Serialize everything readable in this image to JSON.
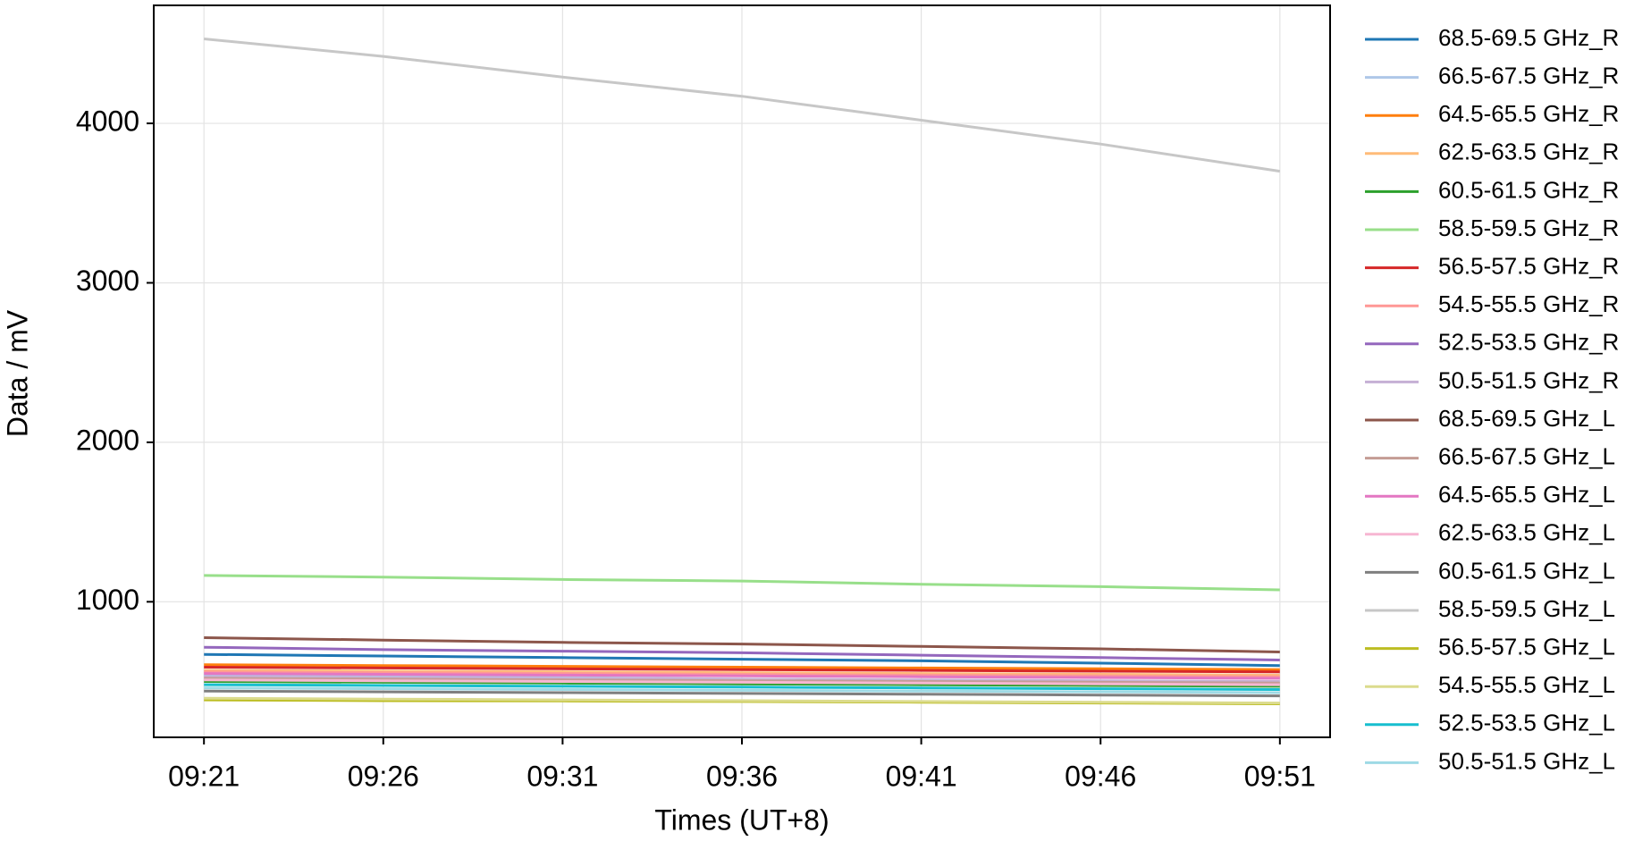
{
  "chart_data": {
    "type": "line",
    "x_label": "Times (UT+8)",
    "y_label": "Data / mV",
    "categories": [
      "09:21",
      "09:26",
      "09:31",
      "09:36",
      "09:41",
      "09:46",
      "09:51"
    ],
    "ylim": [
      150,
      4740
    ],
    "yticks": [
      1000,
      2000,
      3000,
      4000
    ],
    "grid": true,
    "legend": "outside-right",
    "series": [
      {
        "name": "68.5-69.5 GHz_R",
        "color": "#1f77b4",
        "values": [
          670,
          660,
          650,
          640,
          630,
          615,
          600
        ]
      },
      {
        "name": "66.5-67.5 GHz_R",
        "color": "#aec7e8",
        "values": [
          540,
          535,
          525,
          515,
          505,
          495,
          485
        ]
      },
      {
        "name": "64.5-65.5 GHz_R",
        "color": "#ff7f0e",
        "values": [
          605,
          600,
          595,
          590,
          585,
          580,
          575
        ]
      },
      {
        "name": "62.5-63.5 GHz_R",
        "color": "#ffbb78",
        "values": [
          570,
          565,
          560,
          555,
          550,
          545,
          540
        ]
      },
      {
        "name": "60.5-61.5 GHz_R",
        "color": "#2ca02c",
        "values": [
          500,
          495,
          490,
          485,
          480,
          475,
          470
        ]
      },
      {
        "name": "58.5-59.5 GHz_R",
        "color": "#98df8a",
        "values": [
          1165,
          1155,
          1140,
          1130,
          1110,
          1095,
          1075
        ]
      },
      {
        "name": "56.5-57.5 GHz_R",
        "color": "#d62728",
        "values": [
          590,
          585,
          580,
          575,
          570,
          565,
          560
        ]
      },
      {
        "name": "54.5-55.5 GHz_R",
        "color": "#ff9896",
        "values": [
          560,
          555,
          550,
          545,
          540,
          535,
          530
        ]
      },
      {
        "name": "52.5-53.5 GHz_R",
        "color": "#9467bd",
        "values": [
          715,
          700,
          690,
          680,
          665,
          650,
          635
        ]
      },
      {
        "name": "50.5-51.5 GHz_R",
        "color": "#c5b0d5",
        "values": [
          530,
          525,
          520,
          515,
          510,
          505,
          500
        ]
      },
      {
        "name": "68.5-69.5 GHz_L",
        "color": "#8c564b",
        "values": [
          775,
          760,
          745,
          735,
          720,
          705,
          685
        ]
      },
      {
        "name": "66.5-67.5 GHz_L",
        "color": "#c49c94",
        "values": [
          520,
          515,
          510,
          505,
          500,
          495,
          490
        ]
      },
      {
        "name": "64.5-65.5 GHz_L",
        "color": "#e377c2",
        "values": [
          550,
          545,
          540,
          535,
          530,
          525,
          520
        ]
      },
      {
        "name": "62.5-63.5 GHz_L",
        "color": "#f7b6d2",
        "values": [
          510,
          505,
          500,
          495,
          490,
          485,
          480
        ]
      },
      {
        "name": "60.5-61.5 GHz_L",
        "color": "#7f7f7f",
        "values": [
          440,
          435,
          430,
          425,
          420,
          415,
          410
        ]
      },
      {
        "name": "58.5-59.5 GHz_L",
        "color": "#c7c7c7",
        "values": [
          4530,
          4420,
          4290,
          4170,
          4020,
          3870,
          3700
        ]
      },
      {
        "name": "56.5-57.5 GHz_L",
        "color": "#bcbd22",
        "values": [
          385,
          380,
          378,
          375,
          370,
          365,
          360
        ]
      },
      {
        "name": "54.5-55.5 GHz_L",
        "color": "#dbdb8d",
        "values": [
          395,
          390,
          385,
          380,
          375,
          370,
          365
        ]
      },
      {
        "name": "52.5-53.5 GHz_L",
        "color": "#17becf",
        "values": [
          480,
          475,
          470,
          465,
          460,
          455,
          450
        ]
      },
      {
        "name": "50.5-51.5 GHz_L",
        "color": "#9edae5",
        "values": [
          460,
          455,
          450,
          445,
          440,
          435,
          430
        ]
      }
    ]
  }
}
